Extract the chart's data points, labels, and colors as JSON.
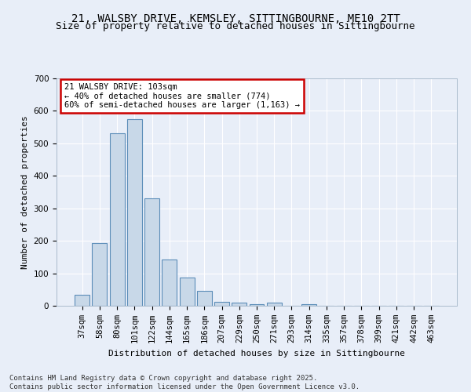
{
  "title_line1": "21, WALSBY DRIVE, KEMSLEY, SITTINGBOURNE, ME10 2TT",
  "title_line2": "Size of property relative to detached houses in Sittingbourne",
  "xlabel": "Distribution of detached houses by size in Sittingbourne",
  "ylabel": "Number of detached properties",
  "categories": [
    "37sqm",
    "58sqm",
    "80sqm",
    "101sqm",
    "122sqm",
    "144sqm",
    "165sqm",
    "186sqm",
    "207sqm",
    "229sqm",
    "250sqm",
    "271sqm",
    "293sqm",
    "314sqm",
    "335sqm",
    "357sqm",
    "378sqm",
    "399sqm",
    "421sqm",
    "442sqm",
    "463sqm"
  ],
  "values": [
    35,
    193,
    530,
    575,
    330,
    143,
    87,
    47,
    13,
    10,
    5,
    10,
    0,
    5,
    0,
    0,
    0,
    0,
    0,
    0,
    0
  ],
  "bar_color": "#c8d8e8",
  "bar_edge_color": "#5b8db8",
  "highlight_index": 3,
  "annotation_text": "21 WALSBY DRIVE: 103sqm\n← 40% of detached houses are smaller (774)\n60% of semi-detached houses are larger (1,163) →",
  "annotation_box_color": "#ffffff",
  "annotation_box_edge_color": "#cc0000",
  "ylim": [
    0,
    700
  ],
  "yticks": [
    0,
    100,
    200,
    300,
    400,
    500,
    600,
    700
  ],
  "bg_color": "#e8eef8",
  "plot_bg_color": "#e8eef8",
  "footer_line1": "Contains HM Land Registry data © Crown copyright and database right 2025.",
  "footer_line2": "Contains public sector information licensed under the Open Government Licence v3.0.",
  "title_fontsize": 10,
  "subtitle_fontsize": 9,
  "label_fontsize": 8,
  "tick_fontsize": 7.5,
  "annotation_fontsize": 7.5,
  "footer_fontsize": 6.5
}
